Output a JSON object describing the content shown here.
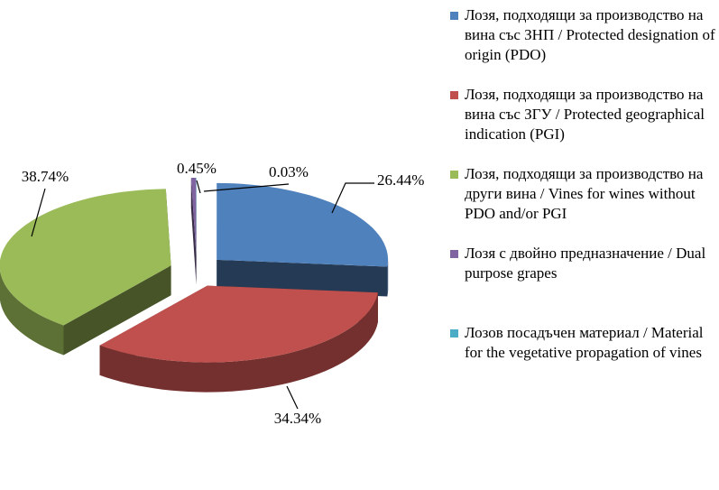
{
  "chart_data": {
    "type": "pie3d",
    "categories": [
      "Лозя, подходящи за производство на вина със ЗНП / Protected designation of origin (PDO)",
      "Лозя, подходящи за производство на вина със ЗГУ / Protected geographical indication (PGI)",
      "Лозя, подходящи за производство на други вина / Vines for wines without PDO and/or PGI",
      "Лозя с двойно предназначение / Dual purpose grapes",
      "Лозов посадъчен материал / Material for the vegetative propagation of vines"
    ],
    "values": [
      26.44,
      34.34,
      38.74,
      0.45,
      0.03
    ],
    "value_labels": [
      "26.44%",
      "34.34%",
      "38.74%",
      "0.45%",
      "0.03%"
    ],
    "colors": [
      "#4f81bd",
      "#c0504d",
      "#9bbb59",
      "#8064a2",
      "#4bacc6"
    ],
    "legend": "right"
  }
}
